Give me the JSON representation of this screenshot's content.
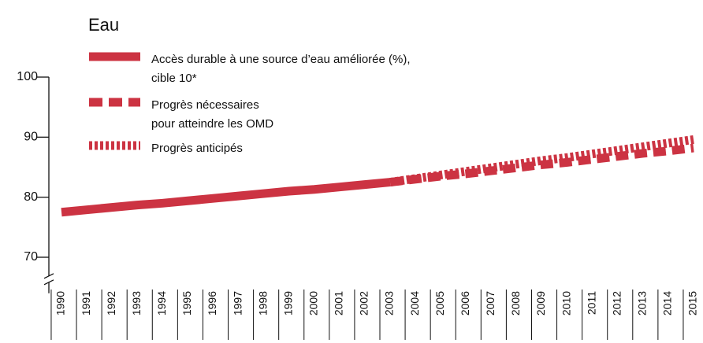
{
  "chart_data": {
    "type": "line",
    "title": "Eau",
    "categories": [
      "1990",
      "1991",
      "1992",
      "1993",
      "1994",
      "1995",
      "1996",
      "1997",
      "1998",
      "1999",
      "2000",
      "2001",
      "2002",
      "2003",
      "2004",
      "2005",
      "2006",
      "2007",
      "2008",
      "2009",
      "2010",
      "2011",
      "2012",
      "2013",
      "2014",
      "2015"
    ],
    "series": [
      {
        "name": [
          "Accès durable à une source d’eau améliorée (%),",
          "cible 10*"
        ],
        "color": "#cc3342",
        "style": "solid",
        "values": [
          77.5,
          77.9,
          78.3,
          78.7,
          79.0,
          79.4,
          79.8,
          80.2,
          80.6,
          81.0,
          81.3,
          81.7,
          82.1,
          82.5,
          null,
          null,
          null,
          null,
          null,
          null,
          null,
          null,
          null,
          null,
          null,
          null
        ]
      },
      {
        "name": [
          "Progrès nécessaires",
          "pour atteindre les OMD"
        ],
        "color": "#cc3342",
        "style": "dashed",
        "values": [
          null,
          null,
          null,
          null,
          null,
          null,
          null,
          null,
          null,
          null,
          null,
          null,
          null,
          82.5,
          83.0,
          83.5,
          83.9,
          84.4,
          84.9,
          85.4,
          85.8,
          86.3,
          86.8,
          87.3,
          87.7,
          88.2
        ]
      },
      {
        "name": [
          "Progrès anticipés"
        ],
        "color": "#cc3342",
        "style": "dotted",
        "values": [
          null,
          null,
          null,
          null,
          null,
          null,
          null,
          null,
          null,
          null,
          null,
          null,
          null,
          82.5,
          83.1,
          83.7,
          84.3,
          84.9,
          85.5,
          86.1,
          86.6,
          87.2,
          87.8,
          88.4,
          89.0,
          89.6
        ]
      }
    ],
    "ylim": [
      64,
      100
    ],
    "yticks": [
      70,
      80,
      90,
      100
    ],
    "axis_break": true
  }
}
